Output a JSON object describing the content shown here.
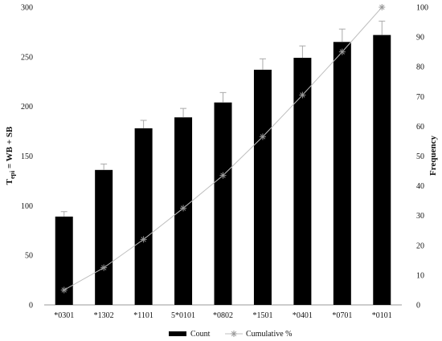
{
  "chart_data": {
    "type": "bar",
    "categories": [
      "*0301",
      "*1302",
      "*1101",
      "5*0101",
      "*0802",
      "*1501",
      "*0401",
      "*0701",
      "*0101"
    ],
    "series": [
      {
        "name": "Count",
        "kind": "bar",
        "axis": "left",
        "values": [
          89,
          136,
          178,
          189,
          204,
          237,
          249,
          265,
          272
        ],
        "error": [
          5,
          6,
          8,
          9,
          10,
          11,
          12,
          13,
          14
        ],
        "color": "#000000"
      },
      {
        "name": "Cumulative %",
        "kind": "line",
        "axis": "right",
        "values": [
          5,
          12.5,
          22,
          32.5,
          43.5,
          56.5,
          70.5,
          85,
          100
        ],
        "color": "#bfbfbf",
        "marker": "asterisk",
        "marker_color": "#999999"
      }
    ],
    "y_left": {
      "label_main": "T",
      "label_sub": "epi",
      "label_rest": " = WB + SB",
      "lim": [
        0,
        300
      ],
      "ticks": [
        0,
        50,
        100,
        150,
        200,
        250,
        300
      ]
    },
    "y_right": {
      "label": "Frequency",
      "lim": [
        0,
        100
      ],
      "ticks": [
        0,
        10,
        20,
        30,
        40,
        50,
        60,
        70,
        80,
        90,
        100
      ]
    },
    "grid": false,
    "legend_position": "bottom"
  }
}
